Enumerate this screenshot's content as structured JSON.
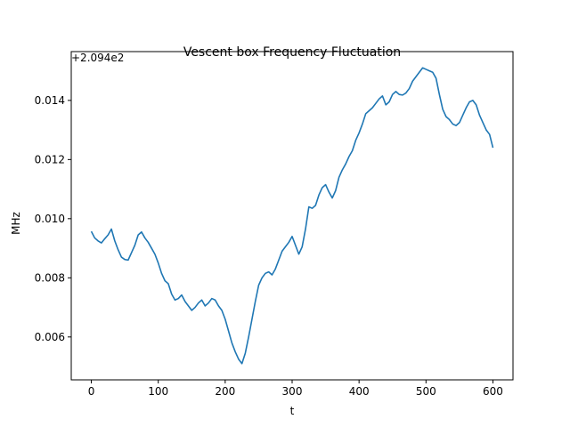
{
  "chart_data": {
    "type": "line",
    "title": "Vescent box Frequency Fluctuation",
    "xlabel": "t",
    "ylabel": "MHz",
    "offset_text": "+2.094e2",
    "xlim": [
      -30,
      630
    ],
    "ylim": [
      0.00455,
      0.01565
    ],
    "xticks": [
      0,
      100,
      200,
      300,
      400,
      500,
      600
    ],
    "xtick_labels": [
      "0",
      "100",
      "200",
      "300",
      "400",
      "500",
      "600"
    ],
    "yticks": [
      0.006,
      0.008,
      0.01,
      0.012,
      0.014
    ],
    "ytick_labels": [
      "0.006",
      "0.008",
      "0.010",
      "0.012",
      "0.014"
    ],
    "grid": false,
    "series": [
      {
        "color": "#1f77b4",
        "x": [
          0,
          5,
          10,
          15,
          20,
          25,
          30,
          35,
          40,
          45,
          50,
          55,
          60,
          65,
          70,
          75,
          80,
          85,
          90,
          95,
          100,
          105,
          110,
          115,
          120,
          125,
          130,
          135,
          140,
          145,
          150,
          155,
          160,
          165,
          170,
          175,
          180,
          185,
          190,
          195,
          200,
          205,
          210,
          215,
          220,
          225,
          230,
          235,
          240,
          245,
          250,
          255,
          260,
          265,
          270,
          275,
          280,
          285,
          290,
          295,
          300,
          305,
          310,
          315,
          320,
          325,
          330,
          335,
          340,
          345,
          350,
          355,
          360,
          365,
          370,
          375,
          380,
          385,
          390,
          395,
          400,
          405,
          410,
          415,
          420,
          425,
          430,
          435,
          440,
          445,
          450,
          455,
          460,
          465,
          470,
          475,
          480,
          485,
          490,
          495,
          500,
          505,
          510,
          515,
          520,
          525,
          530,
          535,
          540,
          545,
          550,
          555,
          560,
          565,
          570,
          575,
          580,
          585,
          590,
          595,
          600
        ],
        "y": [
          0.00957,
          0.00935,
          0.00925,
          0.00918,
          0.00932,
          0.00945,
          0.00965,
          0.00925,
          0.00895,
          0.0087,
          0.00862,
          0.0086,
          0.00885,
          0.0091,
          0.00945,
          0.00955,
          0.00935,
          0.0092,
          0.009,
          0.0088,
          0.0085,
          0.00815,
          0.0079,
          0.0078,
          0.00745,
          0.00725,
          0.0073,
          0.00742,
          0.0072,
          0.00705,
          0.0069,
          0.007,
          0.00715,
          0.00725,
          0.00705,
          0.00715,
          0.0073,
          0.00725,
          0.00705,
          0.0069,
          0.0066,
          0.0062,
          0.0058,
          0.0055,
          0.00525,
          0.0051,
          0.00545,
          0.006,
          0.0066,
          0.0072,
          0.00775,
          0.008,
          0.00815,
          0.0082,
          0.0081,
          0.0083,
          0.0086,
          0.0089,
          0.00905,
          0.0092,
          0.0094,
          0.0091,
          0.0088,
          0.00905,
          0.00965,
          0.0104,
          0.01035,
          0.01045,
          0.0108,
          0.01105,
          0.01115,
          0.0109,
          0.0107,
          0.01095,
          0.0114,
          0.01165,
          0.01185,
          0.0121,
          0.0123,
          0.01265,
          0.0129,
          0.0132,
          0.01355,
          0.01365,
          0.01375,
          0.0139,
          0.01405,
          0.01415,
          0.01385,
          0.01395,
          0.0142,
          0.0143,
          0.0142,
          0.01418,
          0.01425,
          0.0144,
          0.01465,
          0.0148,
          0.01495,
          0.0151,
          0.01505,
          0.015,
          0.01495,
          0.01475,
          0.0142,
          0.0137,
          0.01345,
          0.01335,
          0.0132,
          0.01315,
          0.01325,
          0.0135,
          0.01375,
          0.01395,
          0.014,
          0.01385,
          0.0135,
          0.01325,
          0.013,
          0.01285,
          0.0124
        ]
      }
    ]
  }
}
